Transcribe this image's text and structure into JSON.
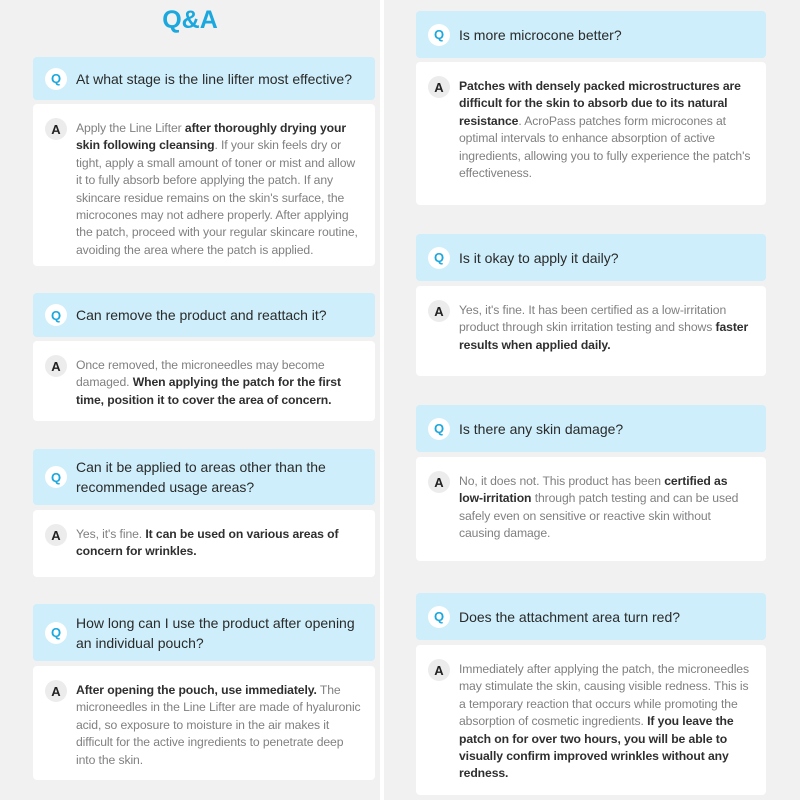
{
  "title": "Q&A",
  "q_badge": "Q",
  "a_badge": "A",
  "left": [
    {
      "question": "At what stage is the line lifter most effective?",
      "answer": [
        {
          "text": "Apply the Line Lifter ",
          "bold": false
        },
        {
          "text": "after thoroughly drying your skin following cleansing",
          "bold": true
        },
        {
          "text": ". If your skin feels dry or tight, apply a small amount of toner or mist and allow it to fully absorb before applying the patch. If any skincare residue remains on the skin's surface, the microcones may not adhere properly. After applying the patch, proceed with your regular skincare routine, avoiding the area where the patch is applied.",
          "bold": false
        }
      ]
    },
    {
      "question": "Can remove the product and reattach it?",
      "answer": [
        {
          "text": "Once removed, the microneedles may become damaged. ",
          "bold": false
        },
        {
          "text": "When applying the patch for the first time, position it to cover the area of concern.",
          "bold": true
        }
      ]
    },
    {
      "question": "Can it be applied to areas other than the recommended usage areas?",
      "answer": [
        {
          "text": "Yes, it's fine. ",
          "bold": false
        },
        {
          "text": "It can be used on various areas of concern for wrinkles.",
          "bold": true
        }
      ]
    },
    {
      "question": "How long can I use the product after opening an individual pouch?",
      "answer": [
        {
          "text": "After opening the pouch, use immediately.",
          "bold": true
        },
        {
          "text": " The microneedles in the Line Lifter are made of hyaluronic acid, so exposure to moisture in the air makes it difficult for the active ingredients to penetrate deep into the skin.",
          "bold": false
        }
      ]
    }
  ],
  "right": [
    {
      "question": "Is more microcone better?",
      "answer": [
        {
          "text": "Patches with densely packed microstructures are difficult for the skin to absorb due to its natural resistance",
          "bold": true
        },
        {
          "text": ". AcroPass patches form microcones at optimal intervals to enhance absorption of active ingredients, allowing you to fully experience the patch's effectiveness.",
          "bold": false
        }
      ]
    },
    {
      "question": "Is it okay to apply it daily?",
      "answer": [
        {
          "text": "Yes, it's fine. It has been certified as a low-irritation product through skin irritation testing and shows ",
          "bold": false
        },
        {
          "text": "faster results when applied daily.",
          "bold": true
        }
      ]
    },
    {
      "question": "Is there any skin damage?",
      "answer": [
        {
          "text": "No, it does not. This product has been ",
          "bold": false
        },
        {
          "text": "certified as low-irritation",
          "bold": true
        },
        {
          "text": " through patch testing and can be used safely even on sensitive or reactive skin without causing damage.",
          "bold": false
        }
      ]
    },
    {
      "question": "Does the attachment area turn red?",
      "answer": [
        {
          "text": "Immediately after applying the patch, the microneedles may stimulate the skin, causing visible redness. This is a temporary reaction that occurs while promoting the absorption of cosmetic ingredients. ",
          "bold": false
        },
        {
          "text": "If you leave the patch on for over two hours, you will be able to visually confirm improved wrinkles without any redness.",
          "bold": true
        }
      ]
    }
  ],
  "colors": {
    "accent": "#1ba8de",
    "question_bg": "#cdeefa",
    "page_bg": "#f1f1f1"
  }
}
